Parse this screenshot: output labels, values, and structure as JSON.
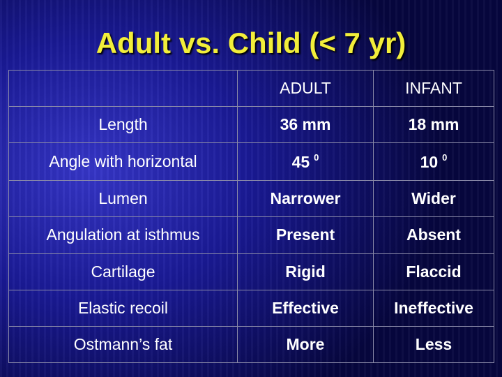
{
  "title": "Adult vs. Child (< 7 yr)",
  "table": {
    "header": [
      "ADULT",
      "INFANT"
    ],
    "rows": [
      [
        "Length",
        "36 mm",
        "18 mm"
      ],
      [
        "Angle with horizontal",
        {
          "text": "45",
          "sup": "0"
        },
        {
          "text": "10",
          "sup": "0"
        }
      ],
      [
        "Lumen",
        "Narrower",
        "Wider"
      ],
      [
        "Angulation at isthmus",
        "Present",
        "Absent"
      ],
      [
        "Cartilage",
        "Rigid",
        "Flaccid"
      ],
      [
        "Elastic recoil",
        "Effective",
        "Ineffective"
      ],
      [
        "Ostmann’s fat",
        "More",
        "Less"
      ]
    ]
  }
}
